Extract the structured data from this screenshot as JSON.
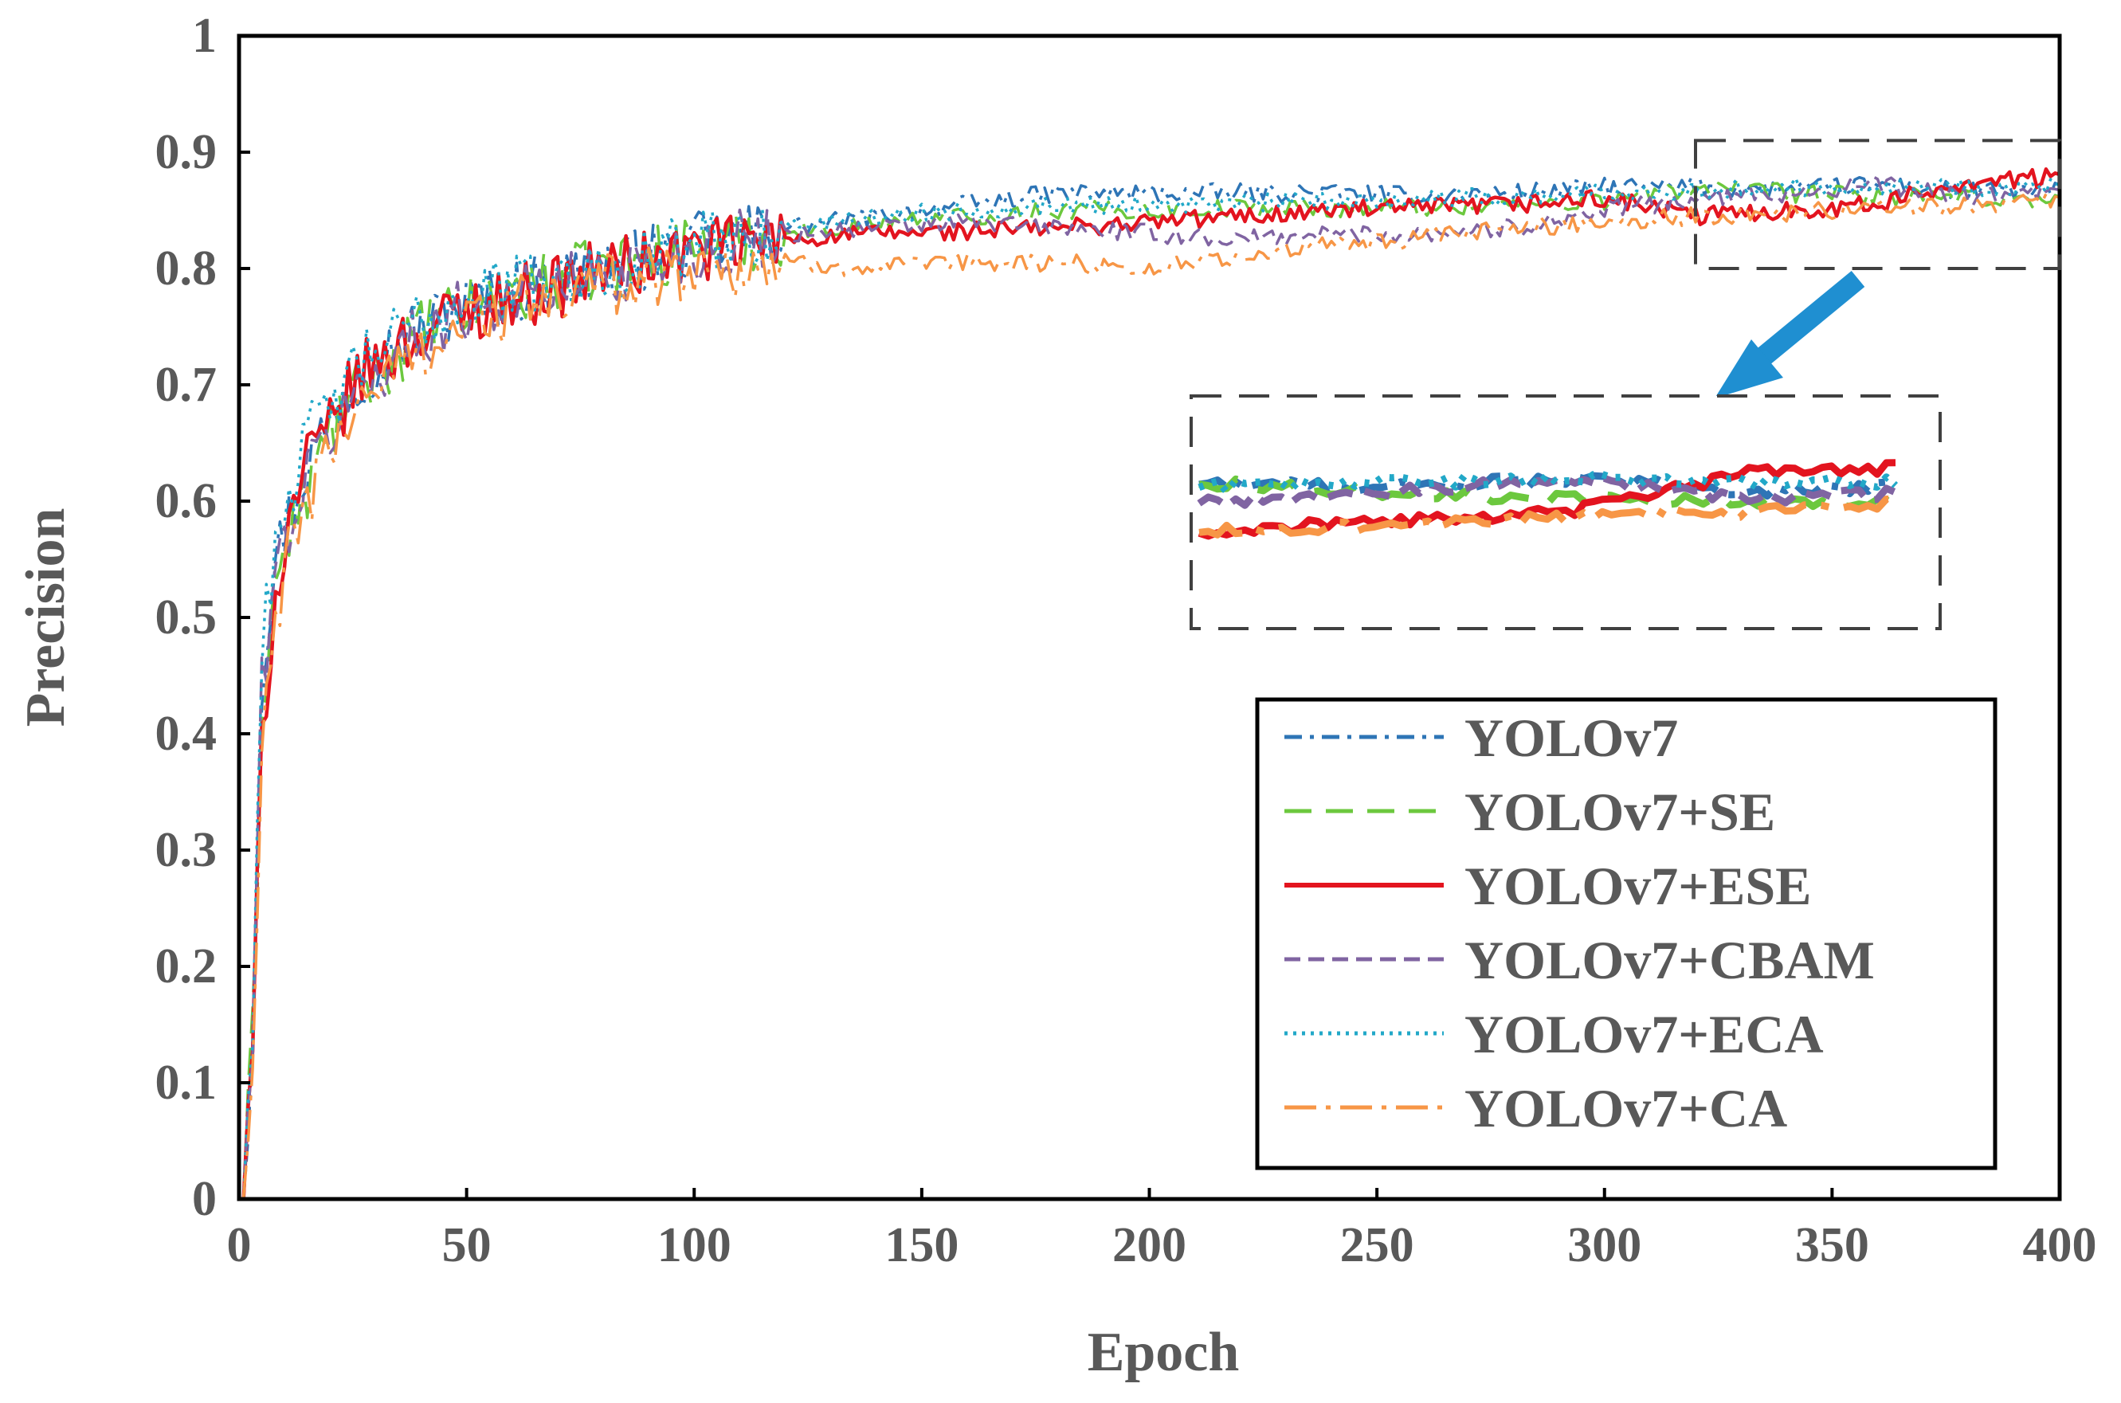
{
  "chart_data": {
    "type": "line",
    "title": "",
    "xlabel": "Epoch",
    "ylabel": "Precision",
    "xlim": [
      0,
      400
    ],
    "ylim": [
      0,
      1
    ],
    "grid": false,
    "legend_position": "bottom-right",
    "x_ticks": [
      "0",
      "50",
      "100",
      "150",
      "200",
      "250",
      "300",
      "350",
      "400"
    ],
    "y_ticks": [
      "0",
      "0.1",
      "0.2",
      "0.3",
      "0.4",
      "0.5",
      "0.6",
      "0.7",
      "0.8",
      "0.9",
      "1"
    ],
    "zoom_region": {
      "x_range": [
        320,
        400
      ],
      "y_range": [
        0.8,
        0.91
      ]
    },
    "series": [
      {
        "name": "YOLOv7",
        "color": "#2E75B6",
        "dash": "dash-dot",
        "x": [
          1,
          3,
          5,
          8,
          12,
          16,
          20,
          25,
          30,
          40,
          50,
          60,
          70,
          80,
          90,
          100,
          120,
          140,
          160,
          180,
          200,
          220,
          240,
          260,
          280,
          300,
          320,
          340,
          360,
          380,
          400
        ],
        "y": [
          0.0,
          0.15,
          0.45,
          0.55,
          0.6,
          0.64,
          0.67,
          0.7,
          0.72,
          0.75,
          0.77,
          0.78,
          0.79,
          0.8,
          0.81,
          0.82,
          0.835,
          0.845,
          0.855,
          0.865,
          0.865,
          0.865,
          0.865,
          0.862,
          0.865,
          0.87,
          0.87,
          0.868,
          0.872,
          0.866,
          0.868
        ]
      },
      {
        "name": "YOLOv7+SE",
        "color": "#6CC83E",
        "dash": "dash",
        "x": [
          1,
          3,
          5,
          8,
          12,
          16,
          20,
          25,
          30,
          40,
          50,
          60,
          70,
          80,
          90,
          100,
          120,
          140,
          160,
          180,
          200,
          220,
          240,
          260,
          280,
          300,
          320,
          340,
          360,
          380,
          400
        ],
        "y": [
          0.0,
          0.14,
          0.42,
          0.53,
          0.58,
          0.62,
          0.66,
          0.69,
          0.71,
          0.745,
          0.765,
          0.78,
          0.79,
          0.8,
          0.81,
          0.82,
          0.83,
          0.84,
          0.845,
          0.85,
          0.85,
          0.852,
          0.852,
          0.853,
          0.855,
          0.858,
          0.87,
          0.865,
          0.862,
          0.86,
          0.858
        ]
      },
      {
        "name": "YOLOv7+ESE",
        "color": "#E3141F",
        "dash": "solid",
        "x": [
          1,
          3,
          5,
          8,
          12,
          16,
          20,
          25,
          30,
          40,
          50,
          60,
          70,
          80,
          90,
          100,
          120,
          140,
          160,
          180,
          200,
          220,
          240,
          260,
          280,
          300,
          320,
          330,
          340,
          360,
          380,
          400
        ],
        "y": [
          0.0,
          0.12,
          0.4,
          0.52,
          0.6,
          0.64,
          0.66,
          0.7,
          0.72,
          0.745,
          0.765,
          0.775,
          0.785,
          0.8,
          0.805,
          0.815,
          0.825,
          0.83,
          0.832,
          0.835,
          0.84,
          0.845,
          0.85,
          0.852,
          0.855,
          0.86,
          0.845,
          0.848,
          0.85,
          0.855,
          0.875,
          0.878
        ]
      },
      {
        "name": "YOLOv7+CBAM",
        "color": "#8064A2",
        "dash": "short-dash",
        "x": [
          1,
          3,
          5,
          8,
          12,
          16,
          20,
          25,
          30,
          40,
          50,
          60,
          70,
          80,
          90,
          100,
          120,
          140,
          160,
          180,
          200,
          220,
          240,
          260,
          280,
          300,
          320,
          340,
          360,
          380,
          400
        ],
        "y": [
          0.0,
          0.13,
          0.44,
          0.54,
          0.59,
          0.63,
          0.66,
          0.69,
          0.71,
          0.745,
          0.765,
          0.775,
          0.785,
          0.795,
          0.805,
          0.815,
          0.83,
          0.835,
          0.84,
          0.835,
          0.83,
          0.825,
          0.83,
          0.83,
          0.835,
          0.85,
          0.86,
          0.865,
          0.872,
          0.862,
          0.865
        ]
      },
      {
        "name": "YOLOv7+ECA",
        "color": "#22A8C8",
        "dash": "dotted",
        "x": [
          1,
          3,
          5,
          8,
          12,
          16,
          20,
          25,
          30,
          40,
          50,
          60,
          70,
          80,
          90,
          100,
          120,
          140,
          160,
          180,
          200,
          220,
          240,
          260,
          280,
          300,
          320,
          340,
          360,
          380,
          400
        ],
        "y": [
          0.0,
          0.16,
          0.47,
          0.57,
          0.62,
          0.66,
          0.68,
          0.71,
          0.73,
          0.755,
          0.775,
          0.785,
          0.79,
          0.8,
          0.81,
          0.82,
          0.835,
          0.845,
          0.85,
          0.855,
          0.855,
          0.856,
          0.858,
          0.86,
          0.862,
          0.865,
          0.868,
          0.87,
          0.872,
          0.87,
          0.87
        ]
      },
      {
        "name": "YOLOv7+CA",
        "color": "#F79646",
        "dash": "long-dash-dot",
        "x": [
          1,
          3,
          5,
          8,
          12,
          16,
          20,
          25,
          30,
          40,
          50,
          60,
          70,
          80,
          90,
          100,
          120,
          140,
          160,
          180,
          200,
          220,
          240,
          260,
          280,
          300,
          320,
          340,
          360,
          380,
          400
        ],
        "y": [
          0.0,
          0.1,
          0.38,
          0.5,
          0.57,
          0.61,
          0.64,
          0.68,
          0.7,
          0.73,
          0.755,
          0.765,
          0.775,
          0.785,
          0.795,
          0.8,
          0.805,
          0.8,
          0.805,
          0.805,
          0.8,
          0.81,
          0.82,
          0.825,
          0.835,
          0.84,
          0.845,
          0.848,
          0.852,
          0.855,
          0.86
        ]
      }
    ]
  }
}
